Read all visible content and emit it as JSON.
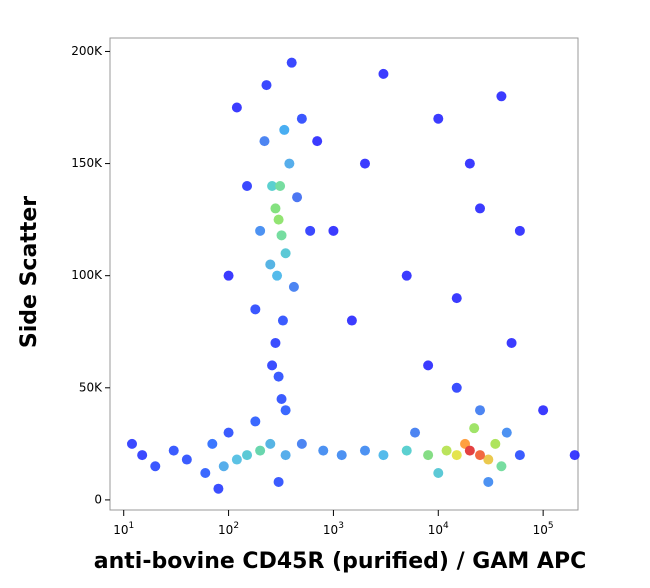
{
  "chart_data": {
    "type": "scatter",
    "x_label": "anti-bovine CD45R (purified) / GAM APC",
    "y_label": "Side Scatter",
    "x_log": true,
    "xlim": [
      7.4,
      215000
    ],
    "ylim": [
      -4500,
      206000
    ],
    "xticks": [
      {
        "value": 10,
        "label": "10",
        "sup": "1"
      },
      {
        "value": 100,
        "label": "10",
        "sup": "2"
      },
      {
        "value": 1000,
        "label": "10",
        "sup": "3"
      },
      {
        "value": 10000,
        "label": "10",
        "sup": "4"
      },
      {
        "value": 100000,
        "label": "10",
        "sup": "5"
      }
    ],
    "yticks": [
      0,
      {
        "value": 50000,
        "label": "50K"
      },
      {
        "value": 100000,
        "label": "100K"
      },
      {
        "value": 150000,
        "label": "150K"
      },
      {
        "value": 200000,
        "label": "200K"
      }
    ],
    "x": [
      2000,
      5000,
      20000,
      25000,
      40000,
      8000,
      1500,
      100000,
      200000,
      3000,
      15000,
      60000,
      1000,
      50000,
      10000,
      120,
      700,
      100,
      500,
      230,
      400,
      150,
      600,
      180,
      280,
      330,
      300,
      320,
      260,
      350,
      220,
      420,
      200,
      450,
      250,
      380,
      350,
      290,
      340,
      260,
      320,
      280,
      310,
      300,
      40,
      30,
      20,
      15,
      12,
      60,
      80,
      300,
      70,
      100,
      180,
      1200,
      800,
      500,
      90,
      350,
      250,
      120,
      200,
      150,
      60000,
      15000,
      25000,
      45000,
      30000,
      6000,
      2000,
      3000,
      5000,
      10000,
      40000,
      8000,
      12000,
      35000,
      22000,
      30000,
      15000,
      18000,
      25000,
      20000
    ],
    "y": [
      150000,
      100000,
      150000,
      130000,
      180000,
      60000,
      80000,
      40000,
      20000,
      190000,
      90000,
      120000,
      120000,
      70000,
      170000,
      175000,
      160000,
      100000,
      170000,
      185000,
      195000,
      140000,
      120000,
      85000,
      70000,
      80000,
      55000,
      45000,
      60000,
      40000,
      160000,
      95000,
      120000,
      135000,
      105000,
      150000,
      110000,
      100000,
      165000,
      140000,
      118000,
      130000,
      140000,
      125000,
      18000,
      22000,
      15000,
      20000,
      25000,
      12000,
      5000,
      8000,
      25000,
      30000,
      35000,
      20000,
      22000,
      25000,
      15000,
      20000,
      25000,
      18000,
      22000,
      20000,
      20000,
      50000,
      40000,
      30000,
      8000,
      30000,
      22000,
      20000,
      22000,
      12000,
      15000,
      20000,
      22000,
      25000,
      32000,
      18000,
      20000,
      25000,
      20000,
      22000
    ],
    "colors": [
      "#1a1aff",
      "#1a1aff",
      "#1a1aff",
      "#1a1aff",
      "#1a1aff",
      "#1a1aff",
      "#1a1aff",
      "#1a1aff",
      "#1a1aff",
      "#1a1aff",
      "#1a1aff",
      "#1a1aff",
      "#1a1aff",
      "#1a1aff",
      "#1a1aff",
      "#1a1aff",
      "#1a1aff",
      "#1a1aff",
      "#1a3aff",
      "#1a2aff",
      "#1a2aff",
      "#1a2aff",
      "#1a2aff",
      "#1a3aff",
      "#1a30ff",
      "#1a40ff",
      "#1a40ff",
      "#1a40ff",
      "#1a30ff",
      "#1a50ff",
      "#2f70f0",
      "#2f70f0",
      "#2f80f0",
      "#2f60f0",
      "#3aa8e0",
      "#3aa0e8",
      "#40c0d0",
      "#38b0e8",
      "#2aa0f0",
      "#40c8c8",
      "#5fd890",
      "#6fdc6a",
      "#60d890",
      "#7fe05a",
      "#1a40ff",
      "#1a40ff",
      "#1a3aff",
      "#1a2aff",
      "#1a2aff",
      "#1a50ff",
      "#1a30ff",
      "#1a40ff",
      "#1a60ff",
      "#1a40ff",
      "#1a50ff",
      "#2f80f0",
      "#2f80f0",
      "#2f70f0",
      "#3aa0e8",
      "#3aa0e8",
      "#3aa8e0",
      "#40b8e0",
      "#50d0a0",
      "#40c0d0",
      "#1a40ff",
      "#1a30ff",
      "#2f70f0",
      "#2f80f0",
      "#2f80f0",
      "#2f70f0",
      "#2f80f0",
      "#38b0e8",
      "#40c8c8",
      "#40c0d0",
      "#60d890",
      "#70d870",
      "#b0e040",
      "#a0e040",
      "#90e050",
      "#e8c030",
      "#e0e030",
      "#ff9020",
      "#f05020",
      "#e02020"
    ],
    "marker_size": 5
  }
}
